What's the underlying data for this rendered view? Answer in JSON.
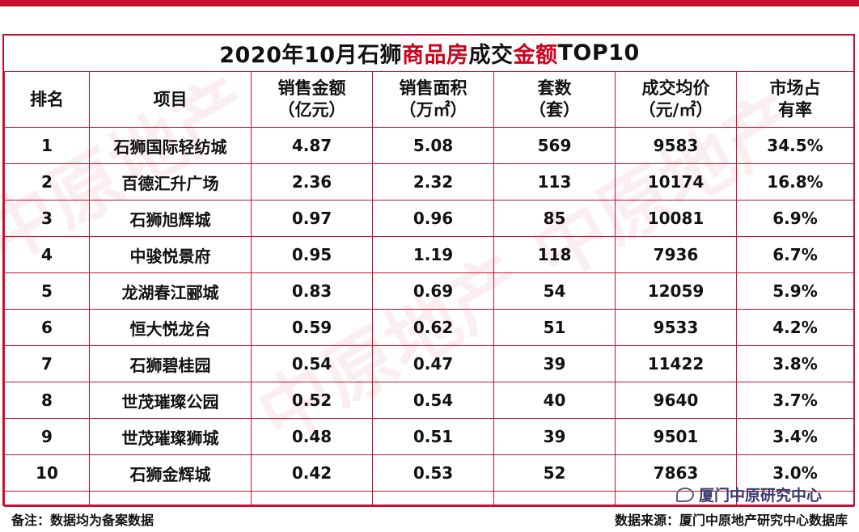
{
  "title_parts": [
    "2020年10月石狮",
    "商品房",
    "成交",
    "金额",
    "TOP10"
  ],
  "headers": {
    "rank": "排名",
    "project": "项目",
    "sales_amount_1": "销售金额",
    "sales_amount_2": "（亿元）",
    "sales_area_1": "销售面积",
    "sales_area_2": "（万㎡）",
    "units_1": "套数",
    "units_2": "（套）",
    "avg_price_1": "成交均价",
    "avg_price_2": "（元/㎡）",
    "share_1": "市场占",
    "share_2": "有率"
  },
  "rows": [
    {
      "rank": "1",
      "project": "石狮国际轻纺城",
      "amount": "4.87",
      "area": "5.08",
      "units": "569",
      "price": "9583",
      "share": "34.5%"
    },
    {
      "rank": "2",
      "project": "百德汇升广场",
      "amount": "2.36",
      "area": "2.32",
      "units": "113",
      "price": "10174",
      "share": "16.8%"
    },
    {
      "rank": "3",
      "project": "石狮旭辉城",
      "amount": "0.97",
      "area": "0.96",
      "units": "85",
      "price": "10081",
      "share": "6.9%"
    },
    {
      "rank": "4",
      "project": "中骏悦景府",
      "amount": "0.95",
      "area": "1.19",
      "units": "118",
      "price": "7936",
      "share": "6.7%"
    },
    {
      "rank": "5",
      "project": "龙湖春江郦城",
      "amount": "0.83",
      "area": "0.69",
      "units": "54",
      "price": "12059",
      "share": "5.9%"
    },
    {
      "rank": "6",
      "project": "恒大悦龙台",
      "amount": "0.59",
      "area": "0.62",
      "units": "51",
      "price": "9533",
      "share": "4.2%"
    },
    {
      "rank": "7",
      "project": "石狮碧桂园",
      "amount": "0.54",
      "area": "0.47",
      "units": "39",
      "price": "11422",
      "share": "3.8%"
    },
    {
      "rank": "8",
      "project": "世茂璀璨公园",
      "amount": "0.52",
      "area": "0.54",
      "units": "40",
      "price": "9640",
      "share": "3.7%"
    },
    {
      "rank": "9",
      "project": "世茂璀璨狮城",
      "amount": "0.48",
      "area": "0.51",
      "units": "39",
      "price": "9501",
      "share": "3.4%"
    },
    {
      "rank": "10",
      "project": "石狮金辉城",
      "amount": "0.42",
      "area": "0.53",
      "units": "52",
      "price": "7863",
      "share": "3.0%"
    }
  ],
  "footer": {
    "note": "备注：数据均为备案数据",
    "source": "数据来源：厦门中原地产研究中心数据库"
  },
  "watermark_account": "厦门中原研究中心",
  "colors": {
    "accent": "#c8102e",
    "highlight": "#d0021b"
  }
}
